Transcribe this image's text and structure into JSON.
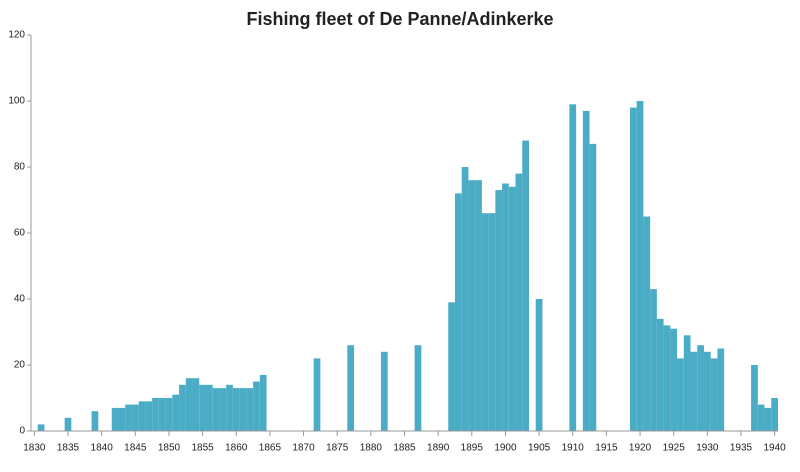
{
  "chart_data": {
    "type": "bar",
    "title": "Fishing fleet of De Panne/Adinkerke",
    "x": [
      1831,
      1835,
      1839,
      1842,
      1843,
      1844,
      1845,
      1846,
      1847,
      1848,
      1849,
      1850,
      1851,
      1852,
      1853,
      1854,
      1855,
      1856,
      1857,
      1858,
      1859,
      1860,
      1861,
      1862,
      1863,
      1864,
      1872,
      1877,
      1882,
      1887,
      1892,
      1893,
      1894,
      1895,
      1896,
      1897,
      1898,
      1899,
      1900,
      1901,
      1902,
      1903,
      1905,
      1910,
      1912,
      1913,
      1919,
      1920,
      1921,
      1922,
      1923,
      1924,
      1925,
      1926,
      1927,
      1928,
      1929,
      1930,
      1931,
      1932,
      1937,
      1938,
      1939,
      1940
    ],
    "values": [
      2,
      4,
      6,
      7,
      7,
      8,
      8,
      9,
      9,
      10,
      10,
      10,
      11,
      14,
      16,
      16,
      14,
      14,
      13,
      13,
      14,
      13,
      13,
      13,
      15,
      17,
      22,
      26,
      24,
      26,
      39,
      72,
      80,
      76,
      76,
      66,
      66,
      73,
      75,
      74,
      78,
      88,
      40,
      99,
      97,
      87,
      98,
      100,
      65,
      43,
      34,
      32,
      31,
      22,
      29,
      24,
      26,
      24,
      22,
      25,
      20,
      8,
      7,
      10
    ],
    "color": "#4bacc6",
    "xlim": [
      1829.5,
      1940.5
    ],
    "xticks": [
      1830,
      1835,
      1840,
      1845,
      1850,
      1855,
      1860,
      1865,
      1870,
      1875,
      1880,
      1885,
      1890,
      1895,
      1900,
      1905,
      1910,
      1915,
      1920,
      1925,
      1930,
      1935,
      1940
    ],
    "ylim": [
      0,
      120
    ],
    "yticks": [
      0,
      20,
      40,
      60,
      80,
      100,
      120
    ],
    "grid": false
  }
}
